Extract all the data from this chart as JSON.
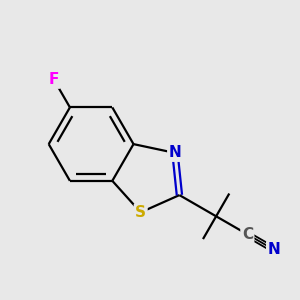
{
  "bg_color": "#e8e8e8",
  "bond_color": "#000000",
  "N_color": "#0000cc",
  "S_color": "#ccaa00",
  "F_color": "#ff00ff",
  "C_color": "#555555",
  "line_width": 1.6,
  "dpi": 100,
  "figsize": [
    3.0,
    3.0
  ],
  "xlim": [
    -2.4,
    2.6
  ],
  "ylim": [
    -1.8,
    1.8
  ]
}
